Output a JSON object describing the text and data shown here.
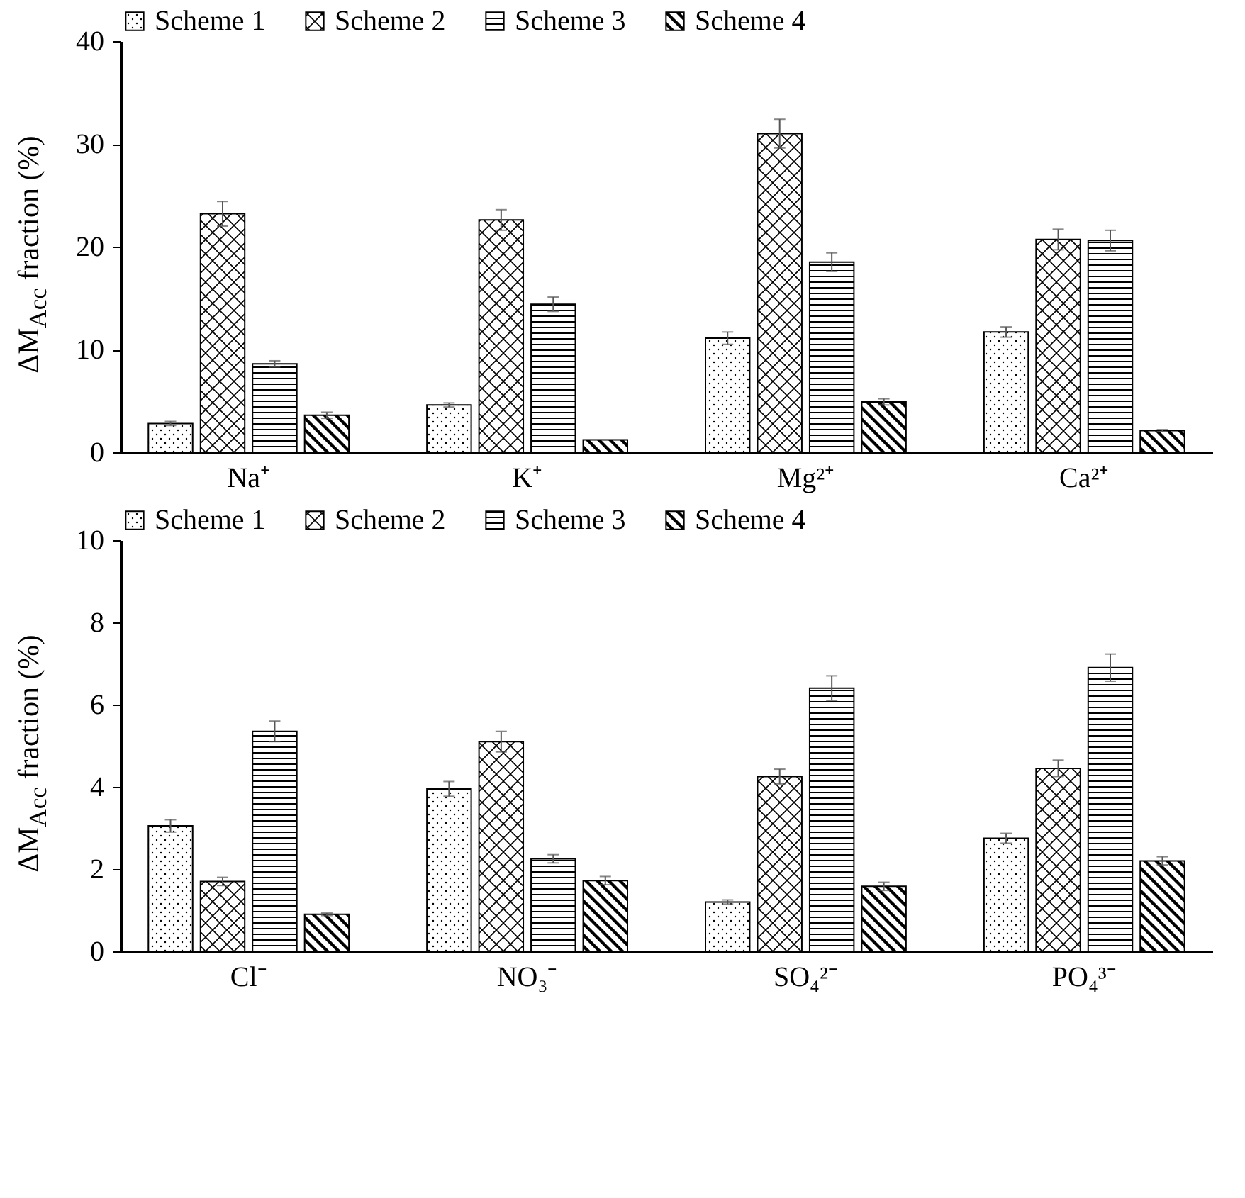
{
  "chart_data": [
    {
      "type": "bar",
      "ylabel": "ΔM$_{Acc}$ fraction (%)",
      "categories": [
        "Na⁺",
        "K⁺",
        "Mg²⁺",
        "Ca²⁺"
      ],
      "series": [
        {
          "name": "Scheme 1",
          "color": "#000000",
          "values": [
            2.8,
            4.6,
            11.1,
            11.7
          ],
          "errors": [
            0.2,
            0.2,
            0.6,
            0.5
          ]
        },
        {
          "name": "Scheme 2",
          "color": "#000000",
          "values": [
            23.2,
            22.6,
            31.0,
            20.7
          ],
          "errors": [
            1.2,
            1.0,
            1.4,
            1.0
          ]
        },
        {
          "name": "Scheme 3",
          "color": "#000000",
          "values": [
            8.6,
            14.4,
            18.5,
            20.6
          ],
          "errors": [
            0.3,
            0.7,
            0.9,
            1.0
          ]
        },
        {
          "name": "Scheme 4",
          "color": "#000000",
          "values": [
            3.6,
            1.2,
            4.9,
            2.1
          ],
          "errors": [
            0.3,
            null,
            0.3,
            0.1
          ]
        }
      ],
      "ylim": [
        0,
        40
      ],
      "yticks": [
        0,
        10,
        20,
        30,
        40
      ],
      "legend": "top",
      "grid": false
    },
    {
      "type": "bar",
      "ylabel": "ΔM$_{Acc}$ fraction (%)",
      "categories": [
        "Cl⁻",
        "NO₃⁻",
        "SO₄²⁻",
        "PO₄³⁻"
      ],
      "series": [
        {
          "name": "Scheme 1",
          "color": "#000000",
          "values": [
            3.05,
            3.95,
            1.2,
            2.75
          ],
          "errors": [
            0.15,
            0.18,
            0.05,
            0.12
          ]
        },
        {
          "name": "Scheme 2",
          "color": "#000000",
          "values": [
            1.7,
            5.1,
            4.25,
            4.45
          ],
          "errors": [
            0.1,
            0.25,
            0.18,
            0.2
          ]
        },
        {
          "name": "Scheme 3",
          "color": "#000000",
          "values": [
            5.35,
            2.25,
            6.4,
            6.9
          ],
          "errors": [
            0.25,
            0.1,
            0.3,
            0.33
          ]
        },
        {
          "name": "Scheme 4",
          "color": "#000000",
          "values": [
            0.9,
            1.72,
            1.58,
            2.2
          ],
          "errors": [
            0.03,
            0.1,
            0.1,
            0.1
          ]
        }
      ],
      "ylim": [
        0,
        10
      ],
      "yticks": [
        0,
        2,
        4,
        6,
        8,
        10
      ],
      "legend": "top",
      "grid": false
    }
  ]
}
